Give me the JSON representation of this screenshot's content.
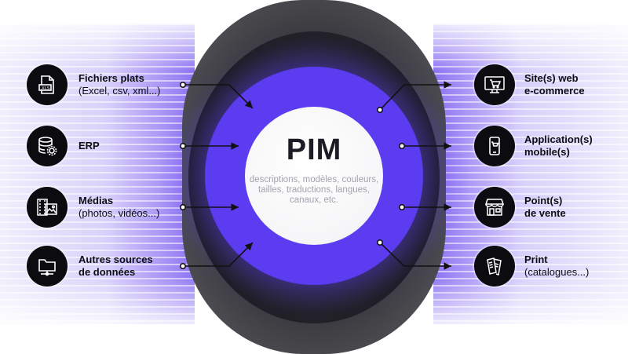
{
  "center": {
    "title": "PIM",
    "description": "descriptions, modèles, couleurs, tailles, traductions, langues, canaux, etc."
  },
  "sources": [
    {
      "title": "Fichiers plats",
      "subtitle": "(Excel, csv, xml...)",
      "icon": "file-xls-icon"
    },
    {
      "title": "ERP",
      "subtitle": "",
      "icon": "database-gear-icon"
    },
    {
      "title": "Médias",
      "subtitle": "(photos, vidéos...)",
      "icon": "media-film-icon"
    },
    {
      "title": "Autres sources",
      "subtitle": "de données",
      "icon": "folder-network-icon"
    }
  ],
  "channels": [
    {
      "title": "Site(s) web",
      "subtitle": "e-commerce",
      "icon": "monitor-cart-icon"
    },
    {
      "title": "Application(s)",
      "subtitle": "mobile(s)",
      "icon": "smartphone-cart-icon"
    },
    {
      "title": "Point(s)",
      "subtitle": "de vente",
      "icon": "storefront-icon"
    },
    {
      "title": "Print",
      "subtitle": "(catalogues...)",
      "icon": "catalog-print-icon"
    }
  ],
  "colors": {
    "accent": "#5b3cf0",
    "dark": "#0c0c10",
    "panel_glow": "#8d74f3"
  }
}
